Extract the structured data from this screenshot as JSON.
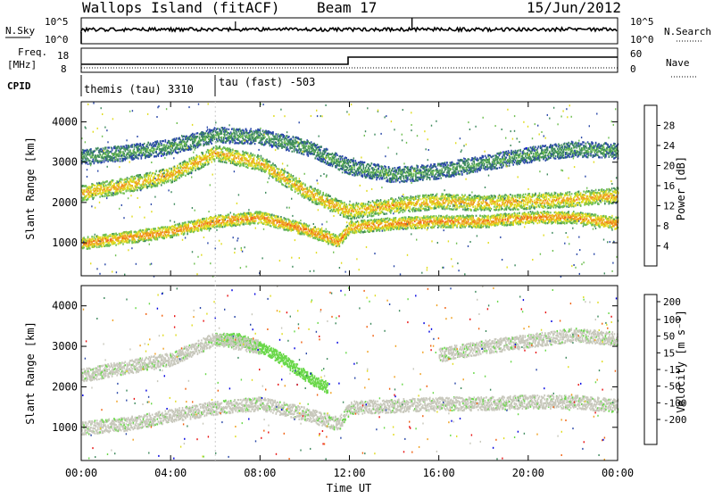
{
  "header": {
    "station": "Wallops Island (fitACF)",
    "beam": "Beam 17",
    "date": "15/Jun/2012"
  },
  "top_panels": {
    "noise": {
      "left_label": "N.Sky",
      "left_ticks": [
        "10^5",
        "10^0"
      ],
      "right_label": "N.Search",
      "right_ticks": [
        "10^5",
        "10^0"
      ]
    },
    "freq": {
      "left_label_1": "Freq.",
      "left_label_2": "[MHz]",
      "left_ticks": [
        "18",
        "8"
      ],
      "right_label": "Nave",
      "right_ticks": [
        "60",
        "0"
      ]
    },
    "cpid": {
      "label": "CPID",
      "modes": [
        {
          "text": "themis (tau) 3310",
          "start_hour": 0
        },
        {
          "text": "tau (fast) -503",
          "start_hour": 6
        }
      ]
    }
  },
  "colors": {
    "power_scale": [
      "#0000e0",
      "#2a48a8",
      "#3f8a5e",
      "#6fbf52",
      "#e0dc20",
      "#f0a020",
      "#f06018",
      "#e81010"
    ],
    "velocity_scale": [
      "#e81010",
      "#f06010",
      "#f0a020",
      "#e0dc20",
      "#c8c8bc",
      "#6ad84a",
      "#3f8a5e",
      "#2a48a8",
      "#0000e0"
    ]
  },
  "chart_data": [
    {
      "type": "heatmap",
      "name": "Power",
      "xlabel": "Time UT",
      "ylabel": "Slant Range [km]",
      "x_ticks": [
        "00:00",
        "04:00",
        "08:00",
        "12:00",
        "16:00",
        "20:00",
        "00:00"
      ],
      "x_range_hours": [
        0,
        24
      ],
      "y_ticks": [
        1000,
        2000,
        3000,
        4000
      ],
      "y_range_km": [
        180,
        4500
      ],
      "colorbar": {
        "label": "Power [dB]",
        "ticks": [
          4,
          8,
          12,
          16,
          20,
          24,
          28
        ]
      },
      "bands_km": [
        {
          "times_h": [
            0,
            2,
            4,
            6,
            8,
            10,
            11.5,
            12,
            14,
            16,
            18,
            20,
            22,
            24
          ],
          "ranges": [
            1000,
            1150,
            1300,
            1550,
            1650,
            1350,
            1050,
            1400,
            1500,
            1550,
            1550,
            1650,
            1650,
            1500
          ],
          "value_dB": 24
        },
        {
          "times_h": [
            0,
            2,
            4,
            6,
            8,
            10,
            11.5,
            12,
            14,
            16,
            18,
            20,
            22,
            24
          ],
          "ranges": [
            2250,
            2450,
            2700,
            3250,
            3000,
            2300,
            1900,
            1800,
            1950,
            2050,
            2000,
            2050,
            2100,
            2200
          ],
          "value_dB": 22
        },
        {
          "times_h": [
            0,
            2,
            4,
            6,
            8,
            10,
            12,
            14,
            16,
            18,
            20,
            22,
            24
          ],
          "ranges": [
            3150,
            3250,
            3400,
            3700,
            3650,
            3400,
            2900,
            2700,
            2800,
            3000,
            3200,
            3350,
            3300
          ],
          "value_dB": 12
        }
      ]
    },
    {
      "type": "heatmap",
      "name": "Velocity",
      "xlabel": "Time UT",
      "ylabel": "Slant Range [km]",
      "x_ticks": [
        "00:00",
        "04:00",
        "08:00",
        "12:00",
        "16:00",
        "20:00",
        "00:00"
      ],
      "x_range_hours": [
        0,
        24
      ],
      "y_ticks": [
        1000,
        2000,
        3000,
        4000
      ],
      "y_range_km": [
        180,
        4500
      ],
      "colorbar": {
        "label": "Velocity [m s⁻¹]",
        "ticks": [
          200,
          100,
          50,
          15,
          -15,
          -50,
          -100,
          -200
        ]
      },
      "bands_km": [
        {
          "times_h": [
            0,
            2,
            4,
            6,
            8,
            10,
            11.5,
            12,
            14,
            16,
            18,
            20,
            22,
            24
          ],
          "ranges": [
            1000,
            1100,
            1300,
            1500,
            1600,
            1350,
            1100,
            1500,
            1550,
            1600,
            1600,
            1650,
            1650,
            1550
          ],
          "value": 0
        },
        {
          "times_h": [
            6,
            7,
            8,
            9,
            10,
            11
          ],
          "ranges": [
            3200,
            3200,
            3000,
            2700,
            2300,
            2000
          ],
          "value": 50
        },
        {
          "times_h": [
            0,
            2,
            4,
            6,
            8
          ],
          "ranges": [
            2300,
            2500,
            2700,
            3200,
            3000
          ],
          "value": 0
        },
        {
          "times_h": [
            16,
            18,
            20,
            22,
            24
          ],
          "ranges": [
            2800,
            3000,
            3150,
            3300,
            3200
          ],
          "value": 0
        }
      ]
    }
  ]
}
